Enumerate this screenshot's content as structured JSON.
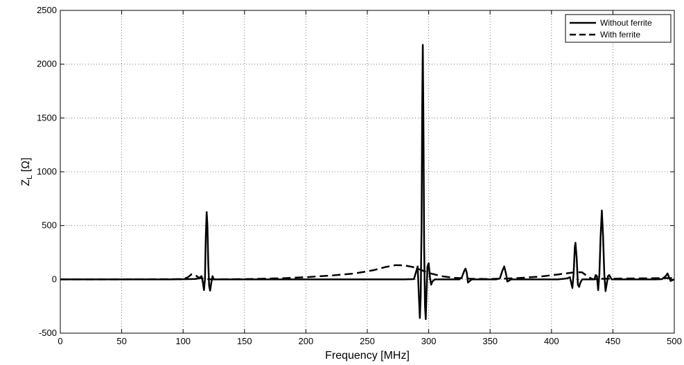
{
  "chart_data": {
    "type": "line",
    "title": "",
    "xlabel": "Frequency [MHz]",
    "ylabel": {
      "main": "Z",
      "sub": "L",
      "unit": " [Ω]"
    },
    "xlim": [
      0,
      500
    ],
    "ylim": [
      -500,
      2500
    ],
    "xticks": [
      0,
      50,
      100,
      150,
      200,
      250,
      300,
      350,
      400,
      450,
      500
    ],
    "yticks": [
      -500,
      0,
      500,
      1000,
      1500,
      2000,
      2500
    ],
    "grid": true,
    "legend_position": "top-right",
    "series": [
      {
        "name": "Without ferrite",
        "style": "solid",
        "color": "#000000",
        "points": [
          [
            0,
            0
          ],
          [
            50,
            0
          ],
          [
            90,
            0
          ],
          [
            105,
            2
          ],
          [
            110,
            4
          ],
          [
            113,
            10
          ],
          [
            115,
            30
          ],
          [
            116,
            -20
          ],
          [
            117,
            -100
          ],
          [
            117.8,
            0
          ],
          [
            118.5,
            400
          ],
          [
            119.2,
            625
          ],
          [
            119.8,
            500
          ],
          [
            120.5,
            150
          ],
          [
            121.2,
            -60
          ],
          [
            122,
            -105
          ],
          [
            123,
            -30
          ],
          [
            124,
            30
          ],
          [
            125,
            0
          ],
          [
            128,
            0
          ],
          [
            150,
            0
          ],
          [
            200,
            0
          ],
          [
            250,
            0
          ],
          [
            280,
            0
          ],
          [
            288,
            2
          ],
          [
            290,
            80
          ],
          [
            291,
            120
          ],
          [
            292,
            -150
          ],
          [
            292.8,
            -360
          ],
          [
            293.5,
            -150
          ],
          [
            294.2,
            500
          ],
          [
            294.7,
            1600
          ],
          [
            295.2,
            2180
          ],
          [
            295.7,
            1500
          ],
          [
            296.3,
            300
          ],
          [
            297,
            -250
          ],
          [
            297.6,
            -370
          ],
          [
            298.3,
            -100
          ],
          [
            299,
            120
          ],
          [
            300,
            150
          ],
          [
            301,
            20
          ],
          [
            302,
            -50
          ],
          [
            303,
            -20
          ],
          [
            305,
            0
          ],
          [
            310,
            0
          ],
          [
            325,
            0
          ],
          [
            327,
            20
          ],
          [
            329,
            80
          ],
          [
            330,
            100
          ],
          [
            331,
            60
          ],
          [
            332,
            -30
          ],
          [
            333,
            -20
          ],
          [
            335,
            0
          ],
          [
            355,
            0
          ],
          [
            358,
            10
          ],
          [
            360,
            80
          ],
          [
            361.5,
            120
          ],
          [
            363,
            50
          ],
          [
            364,
            -20
          ],
          [
            365,
            -15
          ],
          [
            367,
            0
          ],
          [
            405,
            0
          ],
          [
            410,
            5
          ],
          [
            413,
            10
          ],
          [
            415,
            20
          ],
          [
            416,
            -30
          ],
          [
            417,
            -80
          ],
          [
            418,
            50
          ],
          [
            419,
            300
          ],
          [
            419.5,
            340
          ],
          [
            420.5,
            200
          ],
          [
            421.5,
            -50
          ],
          [
            422.5,
            -70
          ],
          [
            423.5,
            -30
          ],
          [
            425,
            0
          ],
          [
            430,
            0
          ],
          [
            435,
            0
          ],
          [
            436,
            40
          ],
          [
            437,
            30
          ],
          [
            438,
            -100
          ],
          [
            439,
            50
          ],
          [
            440,
            400
          ],
          [
            441,
            640
          ],
          [
            442,
            400
          ],
          [
            443,
            50
          ],
          [
            444,
            -110
          ],
          [
            445,
            -40
          ],
          [
            446,
            30
          ],
          [
            447,
            40
          ],
          [
            449,
            0
          ],
          [
            460,
            0
          ],
          [
            485,
            0
          ],
          [
            490,
            2
          ],
          [
            493,
            30
          ],
          [
            494.5,
            55
          ],
          [
            496,
            10
          ],
          [
            497,
            -15
          ],
          [
            500,
            0
          ]
        ]
      },
      {
        "name": "With ferrite",
        "style": "dashed",
        "color": "#000000",
        "points": [
          [
            0,
            0
          ],
          [
            50,
            0
          ],
          [
            100,
            2
          ],
          [
            104,
            20
          ],
          [
            107,
            48
          ],
          [
            110,
            38
          ],
          [
            113,
            15
          ],
          [
            117,
            5
          ],
          [
            125,
            0
          ],
          [
            150,
            2
          ],
          [
            180,
            10
          ],
          [
            200,
            20
          ],
          [
            220,
            35
          ],
          [
            240,
            55
          ],
          [
            255,
            85
          ],
          [
            265,
            115
          ],
          [
            273,
            132
          ],
          [
            280,
            130
          ],
          [
            287,
            115
          ],
          [
            293,
            90
          ],
          [
            300,
            60
          ],
          [
            310,
            30
          ],
          [
            320,
            15
          ],
          [
            335,
            5
          ],
          [
            350,
            3
          ],
          [
            370,
            10
          ],
          [
            390,
            25
          ],
          [
            405,
            45
          ],
          [
            415,
            60
          ],
          [
            420,
            68
          ],
          [
            425,
            65
          ],
          [
            430,
            20
          ],
          [
            434,
            0
          ],
          [
            440,
            5
          ],
          [
            460,
            8
          ],
          [
            480,
            10
          ],
          [
            500,
            12
          ]
        ]
      }
    ]
  }
}
